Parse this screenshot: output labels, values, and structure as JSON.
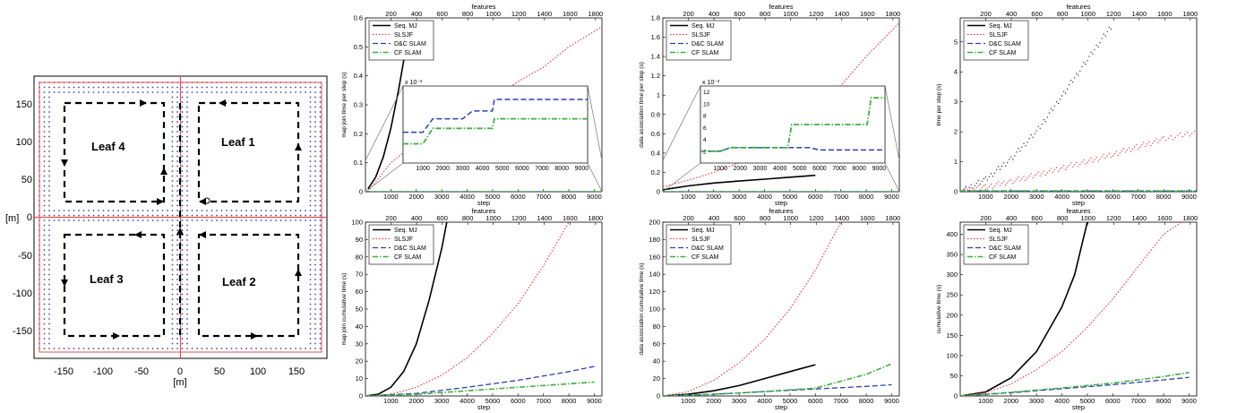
{
  "map": {
    "tick_labels_x": [
      "-150",
      "-100",
      "-50",
      "0",
      "50",
      "100",
      "150"
    ],
    "tick_labels_y": [
      "150",
      "100",
      "50",
      "0",
      "-50",
      "-100",
      "-150"
    ],
    "xlabel": "[m]",
    "ylabel": "[m]",
    "leaf_labels": [
      "Leaf 4",
      "Leaf 1",
      "Leaf 3",
      "Leaf 2"
    ]
  },
  "chart_data": [
    {
      "type": "line",
      "xlabel": "step",
      "ylabel": "map join time per step (s)",
      "toplabel": "features",
      "xlim": [
        0,
        9300
      ],
      "ylim": [
        0,
        0.6
      ],
      "xticks": [
        1000,
        2000,
        3000,
        4000,
        5000,
        6000,
        7000,
        8000,
        9000
      ],
      "yticks": [
        0,
        0.1,
        0.2,
        0.3,
        0.4,
        0.5,
        0.6
      ],
      "top_xlim": [
        0,
        1850
      ],
      "top_ticks": [
        200,
        400,
        600,
        800,
        1000,
        1200,
        1400,
        1600,
        1800
      ],
      "legend": [
        "Seq. MJ",
        "SLSJF",
        "D&C SLAM",
        "CF SLAM"
      ],
      "series": [
        {
          "name": "Seq. MJ",
          "x": [
            100,
            400,
            700,
            1000,
            1300,
            1600
          ],
          "y": [
            0.01,
            0.05,
            0.12,
            0.22,
            0.35,
            0.5
          ]
        },
        {
          "name": "SLSJF",
          "x": [
            100,
            1000,
            2000,
            3000,
            4000,
            5000,
            6000,
            7000,
            8000,
            9300
          ],
          "y": [
            0.0,
            0.1,
            0.17,
            0.22,
            0.27,
            0.32,
            0.38,
            0.43,
            0.5,
            0.57
          ]
        },
        {
          "name": "D&C SLAM",
          "x": [
            0,
            9300
          ],
          "y": [
            0.0,
            0.0
          ]
        },
        {
          "name": "CF SLAM",
          "x": [
            0,
            9300
          ],
          "y": [
            0.0,
            0.0
          ]
        }
      ],
      "inset": {
        "exponent_label": "x 10⁻³",
        "xticks": [
          1000,
          2000,
          3000,
          4000,
          5000,
          6000,
          7000,
          8000,
          9000
        ],
        "yticks": [],
        "xlim": [
          0,
          9300
        ],
        "ylim": [
          0,
          4
        ],
        "series": [
          {
            "name": "D&C SLAM",
            "x": [
              0,
              1000,
              1500,
              3000,
              3500,
              4500,
              4600,
              9300
            ],
            "y": [
              1.6,
              1.6,
              2.3,
              2.3,
              2.7,
              2.7,
              3.3,
              3.3
            ]
          },
          {
            "name": "CF SLAM",
            "x": [
              0,
              1000,
              1500,
              4500,
              4600,
              9300
            ],
            "y": [
              1.0,
              1.0,
              1.8,
              1.8,
              2.3,
              2.3
            ]
          }
        ]
      }
    },
    {
      "type": "line",
      "xlabel": "step",
      "ylabel": "data association time per step (s)",
      "toplabel": "features",
      "xlim": [
        0,
        9300
      ],
      "ylim": [
        0,
        1.8
      ],
      "xticks": [
        1000,
        2000,
        3000,
        4000,
        5000,
        6000,
        7000,
        8000,
        9000
      ],
      "yticks": [
        0,
        0.2,
        0.4,
        0.6,
        0.8,
        1,
        1.2,
        1.4,
        1.6,
        1.8
      ],
      "top_xlim": [
        0,
        1850
      ],
      "top_ticks": [
        200,
        400,
        600,
        800,
        1000,
        1200,
        1400,
        1600,
        1800
      ],
      "legend": [
        "Seq. MJ",
        "SLSJF",
        "D&C SLAM",
        "CF SLAM"
      ],
      "series": [
        {
          "name": "Seq. MJ",
          "x": [
            0,
            1000,
            2000,
            3000,
            4000,
            5000,
            6000
          ],
          "y": [
            0.02,
            0.06,
            0.09,
            0.11,
            0.13,
            0.15,
            0.17
          ]
        },
        {
          "name": "SLSJF",
          "x": [
            0,
            1000,
            2000,
            3000,
            4000,
            5000,
            6000,
            7000,
            8000,
            9300
          ],
          "y": [
            0.05,
            0.12,
            0.2,
            0.3,
            0.45,
            0.62,
            0.85,
            1.1,
            1.4,
            1.75
          ]
        },
        {
          "name": "D&C SLAM",
          "x": [
            0,
            9300
          ],
          "y": [
            0.0,
            0.0
          ]
        },
        {
          "name": "CF SLAM",
          "x": [
            0,
            9300
          ],
          "y": [
            0.0,
            0.0
          ]
        }
      ],
      "inset": {
        "exponent_label": "x 10⁻³",
        "xticks": [
          1000,
          2000,
          3000,
          4000,
          5000,
          6000,
          7000,
          8000,
          9000
        ],
        "yticks": [
          2,
          4,
          6,
          8,
          10,
          12
        ],
        "xlim": [
          0,
          9300
        ],
        "ylim": [
          0,
          13
        ],
        "series": [
          {
            "name": "D&C SLAM",
            "x": [
              0,
              1000,
              1500,
              4400,
              4600,
              5500,
              6000,
              9300
            ],
            "y": [
              2,
              2,
              2.6,
              2.6,
              2.6,
              2.6,
              2.2,
              2.2
            ]
          },
          {
            "name": "CF SLAM",
            "x": [
              0,
              1000,
              1500,
              4400,
              4600,
              8400,
              8600,
              9300
            ],
            "y": [
              2,
              2,
              2.6,
              2.6,
              6.5,
              6.5,
              11,
              11
            ]
          }
        ]
      }
    },
    {
      "type": "scatter",
      "xlabel": "step",
      "ylabel": "time per step (s)",
      "toplabel": "features",
      "xlim": [
        0,
        9300
      ],
      "ylim": [
        0,
        5.8
      ],
      "xticks": [
        1000,
        2000,
        3000,
        4000,
        5000,
        6000,
        7000,
        8000,
        9000
      ],
      "yticks": [
        0,
        1,
        2,
        3,
        4,
        5
      ],
      "top_xlim": [
        0,
        1850
      ],
      "top_ticks": [
        200,
        400,
        600,
        800,
        1000,
        1200,
        1400,
        1600,
        1800
      ],
      "legend": [
        "Seq. MJ",
        "SLSJF",
        "D&C SLAM",
        "CF SLAM"
      ],
      "series": [
        {
          "name": "Seq. MJ",
          "x": [
            0,
            1000,
            2000,
            3000,
            4000,
            5000,
            6000
          ],
          "y": [
            0.0,
            0.4,
            1.1,
            2.0,
            3.2,
            4.4,
            5.6
          ]
        },
        {
          "name": "SLSJF",
          "x": [
            0,
            1000,
            2000,
            3000,
            4000,
            5000,
            6000,
            7000,
            8000,
            9300
          ],
          "y": [
            0.0,
            0.15,
            0.35,
            0.55,
            0.8,
            1.0,
            1.25,
            1.5,
            1.75,
            2.0
          ]
        },
        {
          "name": "D&C SLAM",
          "x": [
            0,
            9300
          ],
          "y": [
            0.02,
            0.02
          ]
        },
        {
          "name": "CF SLAM",
          "x": [
            0,
            9300
          ],
          "y": [
            0.03,
            0.03
          ]
        }
      ]
    },
    {
      "type": "line",
      "xlabel": "step",
      "ylabel": "map join cumulative time (s)",
      "toplabel": "features",
      "xlim": [
        0,
        9300
      ],
      "ylim": [
        0,
        100
      ],
      "xticks": [
        1000,
        2000,
        3000,
        4000,
        5000,
        6000,
        7000,
        8000,
        9000
      ],
      "yticks": [
        0,
        10,
        20,
        30,
        40,
        50,
        60,
        70,
        80,
        90,
        100
      ],
      "top_xlim": [
        0,
        1850
      ],
      "top_ticks": [
        200,
        400,
        600,
        800,
        1000,
        1200,
        1400,
        1600,
        1800
      ],
      "legend": [
        "Seq. MJ",
        "SLSJF",
        "D&C SLAM",
        "CF SLAM"
      ],
      "series": [
        {
          "name": "Seq. MJ",
          "x": [
            0,
            500,
            1000,
            1500,
            2000,
            2500,
            3000,
            3200
          ],
          "y": [
            0,
            1,
            5,
            14,
            30,
            55,
            85,
            100
          ]
        },
        {
          "name": "SLSJF",
          "x": [
            0,
            1000,
            2000,
            3000,
            4000,
            5000,
            6000,
            7000,
            8000
          ],
          "y": [
            0,
            1,
            5,
            12,
            22,
            36,
            53,
            75,
            100
          ]
        },
        {
          "name": "D&C SLAM",
          "x": [
            0,
            2000,
            4000,
            6000,
            8000,
            9000
          ],
          "y": [
            0,
            1.5,
            5,
            9,
            14,
            17
          ]
        },
        {
          "name": "CF SLAM",
          "x": [
            0,
            2000,
            4000,
            6000,
            8000,
            9000
          ],
          "y": [
            0,
            1,
            3,
            5,
            7,
            8
          ]
        }
      ]
    },
    {
      "type": "line",
      "xlabel": "step",
      "ylabel": "data association cumulative time (s)",
      "toplabel": "features",
      "xlim": [
        0,
        9300
      ],
      "ylim": [
        0,
        200
      ],
      "xticks": [
        1000,
        2000,
        3000,
        4000,
        5000,
        6000,
        7000,
        8000,
        9000
      ],
      "yticks": [
        0,
        20,
        40,
        60,
        80,
        100,
        120,
        140,
        160,
        180,
        200
      ],
      "top_xlim": [
        0,
        1850
      ],
      "top_ticks": [
        200,
        400,
        600,
        800,
        1000,
        1200,
        1400,
        1600,
        1800
      ],
      "legend": [
        "Seq. MJ",
        "SLSJF",
        "D&C SLAM",
        "CF SLAM"
      ],
      "series": [
        {
          "name": "Seq. MJ",
          "x": [
            0,
            1000,
            2000,
            3000,
            4000,
            5000,
            6000
          ],
          "y": [
            0,
            2,
            6,
            12,
            20,
            28,
            36
          ]
        },
        {
          "name": "SLSJF",
          "x": [
            0,
            1000,
            2000,
            3000,
            4000,
            5000,
            6000,
            7000
          ],
          "y": [
            0,
            5,
            18,
            38,
            65,
            100,
            145,
            200
          ]
        },
        {
          "name": "D&C SLAM",
          "x": [
            0,
            2000,
            4000,
            6000,
            8000,
            9000
          ],
          "y": [
            0,
            2,
            5,
            8,
            11,
            13
          ]
        },
        {
          "name": "CF SLAM",
          "x": [
            0,
            2000,
            4000,
            6000,
            8000,
            9000
          ],
          "y": [
            0,
            2,
            5,
            9,
            25,
            37
          ]
        }
      ]
    },
    {
      "type": "line",
      "xlabel": "step",
      "ylabel": "cumulative time (s)",
      "toplabel": "features",
      "xlim": [
        0,
        9300
      ],
      "ylim": [
        0,
        430
      ],
      "xticks": [
        1000,
        2000,
        3000,
        4000,
        5000,
        6000,
        7000,
        8000,
        9000
      ],
      "yticks": [
        0,
        50,
        100,
        150,
        200,
        250,
        300,
        350,
        400
      ],
      "top_xlim": [
        0,
        1850
      ],
      "top_ticks": [
        200,
        400,
        600,
        800,
        1000,
        1200,
        1400,
        1600,
        1800
      ],
      "legend": [
        "Seq. MJ",
        "SLSJF",
        "D&C SLAM",
        "CF SLAM"
      ],
      "series": [
        {
          "name": "Seq. MJ",
          "x": [
            0,
            1000,
            2000,
            3000,
            4000,
            4500,
            5000
          ],
          "y": [
            0,
            10,
            45,
            110,
            220,
            300,
            430
          ]
        },
        {
          "name": "SLSJF",
          "x": [
            0,
            1000,
            2000,
            3000,
            4000,
            5000,
            6000,
            7000,
            8000,
            8700
          ],
          "y": [
            0,
            8,
            30,
            65,
            110,
            170,
            240,
            320,
            400,
            430
          ]
        },
        {
          "name": "D&C SLAM",
          "x": [
            0,
            2000,
            4000,
            6000,
            8000,
            9000
          ],
          "y": [
            0,
            8,
            18,
            28,
            40,
            46
          ]
        },
        {
          "name": "CF SLAM",
          "x": [
            0,
            2000,
            4000,
            6000,
            8000,
            9000
          ],
          "y": [
            0,
            9,
            20,
            32,
            48,
            58
          ]
        }
      ]
    }
  ]
}
